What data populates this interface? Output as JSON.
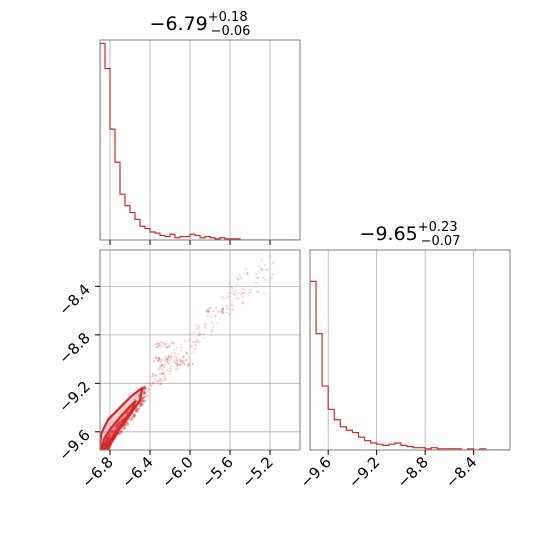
{
  "chart_data": {
    "type": "corner",
    "color": "#d62728",
    "grid": true,
    "parameters": [
      {
        "median": "−6.79",
        "upper": "+0.18",
        "lower": "−0.06"
      },
      {
        "median": "−9.65",
        "upper": "+0.23",
        "lower": "−0.07"
      }
    ],
    "x_range": [
      -6.9,
      -4.9
    ],
    "y_range": [
      -9.75,
      -8.1
    ],
    "x_ticks": [
      {
        "value": -6.8,
        "label": "−6.8"
      },
      {
        "value": -6.4,
        "label": "−6.4"
      },
      {
        "value": -6.0,
        "label": "−6.0"
      },
      {
        "value": -5.6,
        "label": "−5.6"
      },
      {
        "value": -5.2,
        "label": "−5.2"
      }
    ],
    "y_ticks": [
      {
        "value": -8.4,
        "label": "−8.4"
      },
      {
        "value": -8.8,
        "label": "−8.8"
      },
      {
        "value": -9.2,
        "label": "−9.2"
      },
      {
        "value": -9.6,
        "label": "−9.6"
      }
    ],
    "hist1": {
      "bin_edges": [
        -6.9,
        -6.85,
        -6.8,
        -6.75,
        -6.7,
        -6.65,
        -6.6,
        -6.55,
        -6.5,
        -6.45,
        -6.4,
        -6.35,
        -6.3,
        -6.25,
        -6.2,
        -6.15,
        -6.1,
        -6.05,
        -6.0,
        -5.95,
        -5.9,
        -5.85,
        -5.8,
        -5.75,
        -5.7,
        -5.65,
        -5.6,
        -5.55,
        -5.5,
        -5.45,
        -5.4,
        -5.35,
        -5.3,
        -5.25,
        -5.2,
        -5.15,
        -5.1,
        -5.05,
        -5.0,
        -4.95,
        -4.9
      ],
      "counts": [
        172,
        150,
        97,
        68,
        40,
        30,
        24,
        18,
        12,
        10,
        7,
        6,
        4,
        3,
        5,
        2,
        3,
        3,
        5,
        4,
        2,
        3,
        2,
        1,
        2,
        1,
        1,
        1,
        0,
        0,
        0,
        0,
        0,
        0,
        0,
        0,
        0,
        0,
        0,
        0
      ],
      "ylim": [
        0,
        175
      ]
    },
    "hist2": {
      "bin_edges": [
        -9.75,
        -9.7,
        -9.65,
        -9.6,
        -9.55,
        -9.5,
        -9.45,
        -9.4,
        -9.35,
        -9.3,
        -9.25,
        -9.2,
        -9.15,
        -9.1,
        -9.05,
        -9.0,
        -8.95,
        -8.9,
        -8.85,
        -8.8,
        -8.75,
        -8.7,
        -8.65,
        -8.6,
        -8.55,
        -8.5,
        -8.45,
        -8.4,
        -8.35,
        -8.3,
        -8.25,
        -8.2,
        -8.15,
        -8.1
      ],
      "counts": [
        145,
        100,
        55,
        35,
        26,
        20,
        17,
        15,
        11,
        8,
        6,
        5,
        4,
        5,
        6,
        4,
        3,
        2,
        2,
        1,
        2,
        1,
        1,
        1,
        1,
        0,
        1,
        0,
        1,
        0,
        0,
        0,
        0
      ],
      "ylim": [
        0,
        172
      ]
    },
    "density": {
      "ridge_line": [
        [
          -6.9,
          -9.78
        ],
        [
          -6.8,
          -9.66
        ],
        [
          -6.7,
          -9.56
        ],
        [
          -6.6,
          -9.46
        ],
        [
          -6.5,
          -9.34
        ],
        [
          -6.4,
          -9.22
        ],
        [
          -6.2,
          -9.05
        ],
        [
          -6.0,
          -8.88
        ],
        [
          -5.8,
          -8.7
        ],
        [
          -5.6,
          -8.5
        ],
        [
          -5.4,
          -8.35
        ],
        [
          -5.2,
          -8.3
        ]
      ],
      "clusters": [
        [
          -6.05,
          -9.03
        ],
        [
          -6.3,
          -9.0
        ],
        [
          -5.75,
          -8.6
        ],
        [
          -6.25,
          -8.88
        ]
      ],
      "contours": [
        {
          "level": 0.39,
          "points": [
            [
              -6.88,
              -9.74
            ],
            [
              -6.86,
              -9.66
            ],
            [
              -6.8,
              -9.58
            ],
            [
              -6.7,
              -9.48
            ],
            [
              -6.6,
              -9.39
            ],
            [
              -6.55,
              -9.35
            ],
            [
              -6.57,
              -9.41
            ],
            [
              -6.65,
              -9.5
            ],
            [
              -6.72,
              -9.58
            ],
            [
              -6.8,
              -9.68
            ],
            [
              -6.86,
              -9.76
            ]
          ]
        },
        {
          "level": 0.86,
          "points": [
            [
              -6.9,
              -9.76
            ],
            [
              -6.89,
              -9.62
            ],
            [
              -6.82,
              -9.5
            ],
            [
              -6.7,
              -9.4
            ],
            [
              -6.58,
              -9.3
            ],
            [
              -6.48,
              -9.24
            ],
            [
              -6.5,
              -9.34
            ],
            [
              -6.6,
              -9.46
            ],
            [
              -6.7,
              -9.57
            ],
            [
              -6.78,
              -9.68
            ],
            [
              -6.84,
              -9.78
            ]
          ]
        }
      ],
      "fill_levels": [
        0.39,
        0.86
      ]
    }
  }
}
